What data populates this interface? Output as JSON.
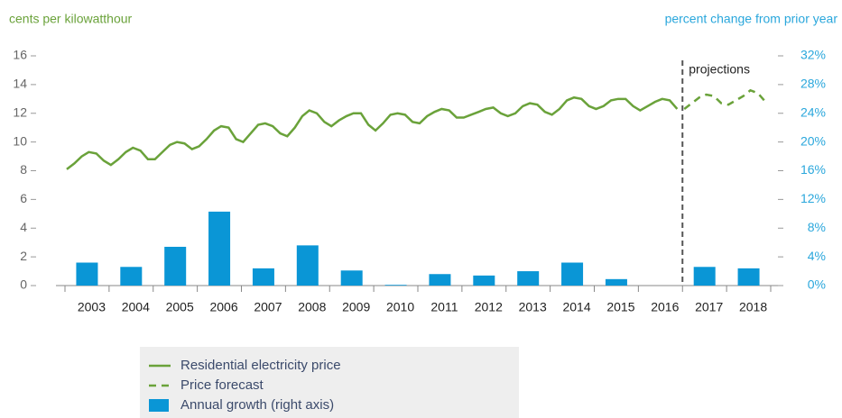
{
  "chart_data": {
    "type": "bar-line",
    "y_label": "cents per kilowatthour",
    "y2_label": "percent change from prior year",
    "annotation": "projections",
    "annotation_x": 2017,
    "xlim": [
      2003,
      2019
    ],
    "categories": [
      "2003",
      "2004",
      "2005",
      "2006",
      "2007",
      "2008",
      "2009",
      "2010",
      "2011",
      "2012",
      "2013",
      "2014",
      "2015",
      "2016",
      "2017",
      "2018"
    ],
    "ylim": [
      0,
      16
    ],
    "yticks": [
      0,
      2,
      4,
      6,
      8,
      10,
      12,
      14,
      16
    ],
    "y2lim": [
      0,
      32
    ],
    "y2ticks": [
      {
        "value": 0,
        "label": "0%"
      },
      {
        "value": 4,
        "label": "4%"
      },
      {
        "value": 8,
        "label": "8%"
      },
      {
        "value": 12,
        "label": "12%"
      },
      {
        "value": 16,
        "label": "16%"
      },
      {
        "value": 20,
        "label": "20%"
      },
      {
        "value": 24,
        "label": "24%"
      },
      {
        "value": 28,
        "label": "28%"
      },
      {
        "value": 32,
        "label": "32%"
      }
    ],
    "series": [
      {
        "name": "Residential electricity price",
        "kind": "line",
        "color": "#6aa23a",
        "x": [
          2003.04,
          2003.21,
          2003.38,
          2003.54,
          2003.71,
          2003.88,
          2004.04,
          2004.21,
          2004.38,
          2004.54,
          2004.71,
          2004.88,
          2005.04,
          2005.21,
          2005.38,
          2005.54,
          2005.71,
          2005.88,
          2006.04,
          2006.21,
          2006.38,
          2006.54,
          2006.71,
          2006.88,
          2007.04,
          2007.21,
          2007.38,
          2007.54,
          2007.71,
          2007.88,
          2008.04,
          2008.21,
          2008.38,
          2008.54,
          2008.71,
          2008.88,
          2009.04,
          2009.21,
          2009.38,
          2009.54,
          2009.71,
          2009.88,
          2010.04,
          2010.21,
          2010.38,
          2010.54,
          2010.71,
          2010.88,
          2011.04,
          2011.21,
          2011.38,
          2011.54,
          2011.71,
          2011.88,
          2012.04,
          2012.21,
          2012.38,
          2012.54,
          2012.71,
          2012.88,
          2013.04,
          2013.21,
          2013.38,
          2013.54,
          2013.71,
          2013.88,
          2014.04,
          2014.21,
          2014.38,
          2014.54,
          2014.71,
          2014.88,
          2015.04,
          2015.21,
          2015.38,
          2015.54,
          2015.71,
          2015.88,
          2016.04,
          2016.21,
          2016.38,
          2016.54,
          2016.71,
          2016.88
        ],
        "values": [
          8.1,
          8.5,
          9.0,
          9.3,
          9.2,
          8.7,
          8.4,
          8.8,
          9.3,
          9.6,
          9.4,
          8.8,
          8.8,
          9.3,
          9.8,
          10.0,
          9.9,
          9.5,
          9.7,
          10.2,
          10.8,
          11.1,
          11.0,
          10.2,
          10.0,
          10.6,
          11.2,
          11.3,
          11.1,
          10.6,
          10.4,
          11.0,
          11.8,
          12.2,
          12.0,
          11.4,
          11.1,
          11.5,
          11.8,
          12.0,
          12.0,
          11.2,
          10.8,
          11.3,
          11.9,
          12.0,
          11.9,
          11.4,
          11.3,
          11.8,
          12.1,
          12.3,
          12.2,
          11.7,
          11.7,
          11.9,
          12.1,
          12.3,
          12.4,
          12.0,
          11.8,
          12.0,
          12.5,
          12.7,
          12.6,
          12.1,
          11.9,
          12.3,
          12.9,
          13.1,
          13.0,
          12.5,
          12.3,
          12.5,
          12.9,
          13.0,
          13.0,
          12.5,
          12.2,
          12.5,
          12.8,
          13.0,
          12.9,
          12.3
        ]
      },
      {
        "name": "Price forecast",
        "kind": "dashed",
        "color": "#6aa23a",
        "x": [
          2017.04,
          2017.21,
          2017.38,
          2017.54,
          2017.71,
          2017.88,
          2018.04,
          2018.21,
          2018.38,
          2018.54,
          2018.71,
          2018.88
        ],
        "values": [
          12.3,
          12.7,
          13.1,
          13.3,
          13.2,
          12.7,
          12.6,
          12.9,
          13.2,
          13.6,
          13.4,
          12.8
        ]
      },
      {
        "name": "Annual growth (right axis)",
        "kind": "bar",
        "axis": "y2",
        "color": "#0a96d6",
        "values": [
          3.2,
          2.6,
          5.4,
          10.3,
          2.4,
          5.6,
          2.1,
          0.1,
          1.6,
          1.4,
          2.0,
          3.2,
          0.9,
          0,
          2.6,
          2.4
        ]
      }
    ]
  }
}
